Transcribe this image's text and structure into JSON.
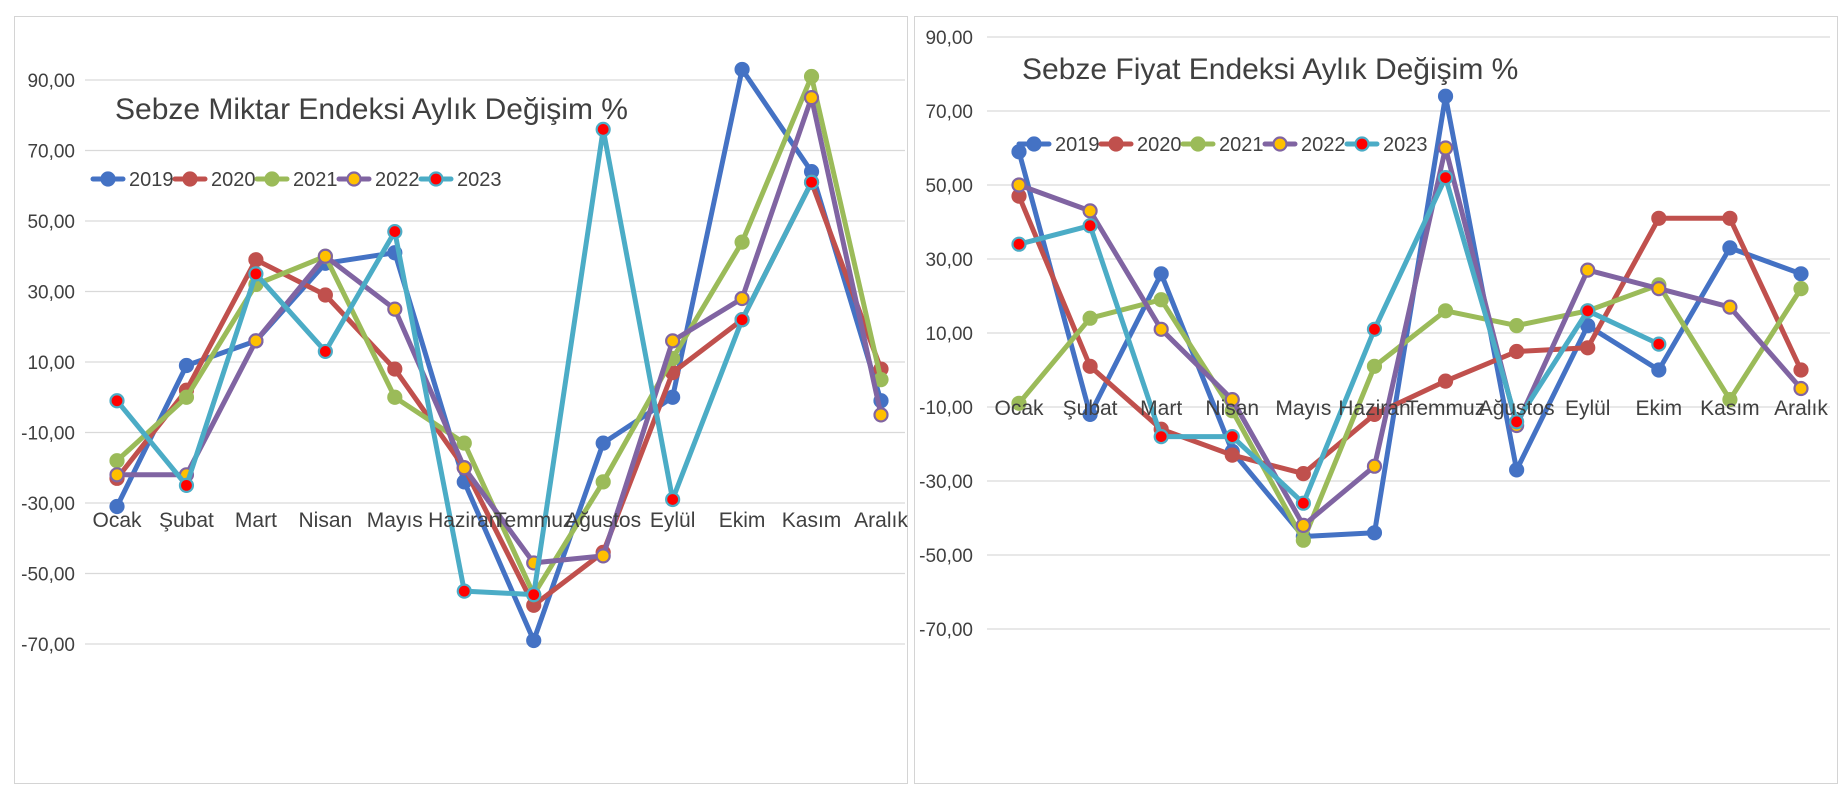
{
  "chart_data": [
    {
      "type": "line",
      "title": "Sebze Miktar Endeksi Aylık Değişim %",
      "xlabel": "",
      "ylabel": "",
      "categories": [
        "Ocak",
        "Şubat",
        "Mart",
        "Nisan",
        "Mayıs",
        "Haziran",
        "Temmuz",
        "Ağustos",
        "Eylül",
        "Ekim",
        "Kasım",
        "Aralık"
      ],
      "ylim": [
        -70,
        90
      ],
      "yticks": [
        90,
        70,
        50,
        30,
        10,
        -10,
        -30,
        -50,
        -70
      ],
      "ytick_labels": [
        "90,00",
        "70,00",
        "50,00",
        "30,00",
        "10,00",
        "-10,00",
        "-30,00",
        "-50,00",
        "-70,00"
      ],
      "grid": true,
      "legend_position": "upper-left",
      "series": [
        {
          "name": "2019",
          "color": "#4472C4",
          "marker_fill": "#4472C4",
          "values": [
            -31,
            9,
            16,
            38,
            41,
            -24,
            -69,
            -13,
            0,
            93,
            64,
            -1
          ]
        },
        {
          "name": "2020",
          "color": "#C0504D",
          "marker_fill": "#C0504D",
          "values": [
            -23,
            2,
            39,
            29,
            8,
            -20,
            -59,
            -44,
            7,
            22,
            61,
            8
          ]
        },
        {
          "name": "2021",
          "color": "#9BBB59",
          "marker_fill": "#9BBB59",
          "values": [
            -18,
            0,
            32,
            40,
            0,
            -13,
            -56,
            -24,
            11,
            44,
            91,
            5
          ]
        },
        {
          "name": "2022",
          "color": "#8064A2",
          "marker_fill": "#FFC000",
          "values": [
            -22,
            -22,
            16,
            40,
            25,
            -20,
            -47,
            -45,
            16,
            28,
            85,
            -5
          ]
        },
        {
          "name": "2023",
          "color": "#4BACC6",
          "marker_fill": "#FF0000",
          "values": [
            -1,
            -25,
            35,
            13,
            47,
            -55,
            -56,
            76,
            -29,
            22,
            61,
            null
          ]
        }
      ]
    },
    {
      "type": "line",
      "title": "Sebze Fiyat Endeksi Aylık Değişim %",
      "xlabel": "",
      "ylabel": "",
      "categories": [
        "Ocak",
        "Şubat",
        "Mart",
        "Nisan",
        "Mayıs",
        "Haziran",
        "Temmuz",
        "Ağustos",
        "Eylül",
        "Ekim",
        "Kasım",
        "Aralık"
      ],
      "ylim": [
        -70,
        90
      ],
      "yticks": [
        90,
        70,
        50,
        30,
        10,
        -10,
        -30,
        -50,
        -70
      ],
      "ytick_labels": [
        "90,00",
        "70,00",
        "50,00",
        "30,00",
        "10,00",
        "-10,00",
        "-30,00",
        "-50,00",
        "-70,00"
      ],
      "grid": true,
      "legend_position": "upper-left",
      "series": [
        {
          "name": "2019",
          "color": "#4472C4",
          "marker_fill": "#4472C4",
          "values": [
            59,
            -12,
            26,
            -22,
            -45,
            -44,
            74,
            -27,
            12,
            0,
            33,
            26
          ]
        },
        {
          "name": "2020",
          "color": "#C0504D",
          "marker_fill": "#C0504D",
          "values": [
            47,
            1,
            -16,
            -23,
            -28,
            -12,
            -3,
            5,
            6,
            41,
            41,
            0
          ]
        },
        {
          "name": "2021",
          "color": "#9BBB59",
          "marker_fill": "#9BBB59",
          "values": [
            -9,
            14,
            19,
            -11,
            -46,
            1,
            16,
            12,
            16,
            23,
            -8,
            22
          ]
        },
        {
          "name": "2022",
          "color": "#8064A2",
          "marker_fill": "#FFC000",
          "values": [
            50,
            43,
            11,
            -8,
            -42,
            -26,
            60,
            -15,
            27,
            22,
            17,
            -5
          ]
        },
        {
          "name": "2023",
          "color": "#4BACC6",
          "marker_fill": "#FF0000",
          "values": [
            34,
            39,
            -18,
            -18,
            -36,
            11,
            52,
            -14,
            16,
            7,
            null,
            null
          ]
        }
      ]
    }
  ]
}
